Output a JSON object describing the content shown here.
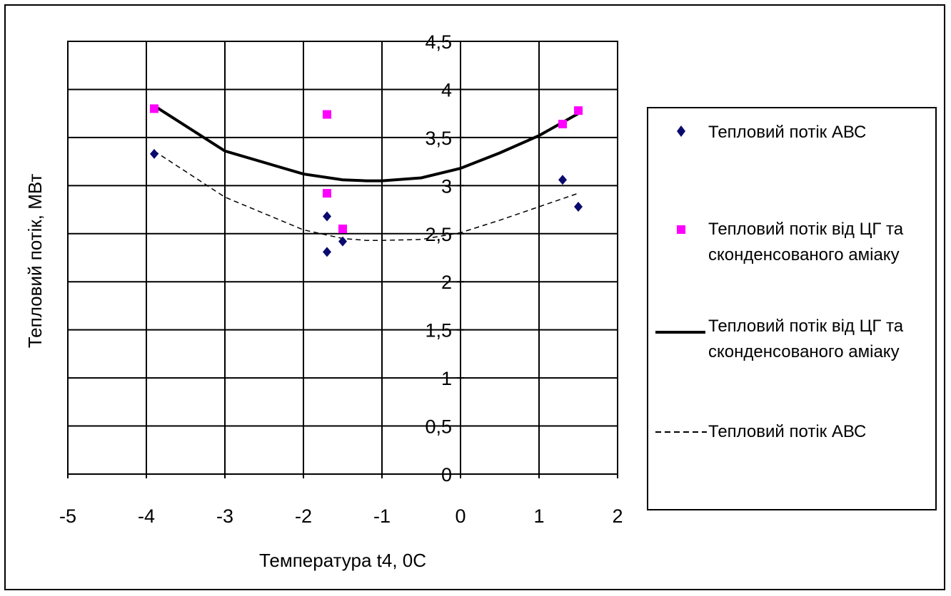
{
  "chart_data": {
    "type": "scatter",
    "xlabel": "Температура t4, 0С",
    "ylabel": "Тепловий потік, МВт",
    "xlim": [
      -5,
      2
    ],
    "ylim": [
      0,
      4.5
    ],
    "x_ticks": [
      "-5",
      "-4",
      "-3",
      "-2",
      "-1",
      "0",
      "1",
      "2"
    ],
    "y_ticks": [
      "0",
      "0,5",
      "1",
      "1,5",
      "2",
      "2,5",
      "3",
      "3,5",
      "4",
      "4,5"
    ],
    "grid": true,
    "legend_position": "right",
    "series": [
      {
        "name": "Тепловий потік АВС",
        "kind": "points",
        "marker": "diamond",
        "color": "#0a0a6e",
        "x": [
          -3.9,
          -1.7,
          -1.7,
          -1.5,
          1.3,
          1.5
        ],
        "y": [
          3.33,
          2.68,
          2.31,
          2.42,
          3.06,
          2.78
        ]
      },
      {
        "name": "Тепловий потік від ЦГ та сконденсованого аміаку",
        "kind": "points",
        "marker": "square",
        "color": "#ff00ff",
        "x": [
          -3.9,
          -1.7,
          -1.7,
          -1.5,
          1.3,
          1.5
        ],
        "y": [
          3.8,
          3.74,
          2.92,
          2.55,
          3.64,
          3.78
        ]
      },
      {
        "name": "Тепловий потік від ЦГ та сконденсованого аміаку",
        "kind": "trend",
        "line_style": "solid",
        "color": "#000000",
        "x": [
          -3.9,
          -3.0,
          -2.0,
          -1.5,
          -1.2,
          -1.0,
          -0.5,
          0.0,
          0.5,
          1.0,
          1.5
        ],
        "y": [
          3.83,
          3.36,
          3.12,
          3.06,
          3.05,
          3.05,
          3.08,
          3.18,
          3.34,
          3.52,
          3.75
        ]
      },
      {
        "name": "Тепловий потік АВС",
        "kind": "trend",
        "line_style": "dashed",
        "color": "#000000",
        "x": [
          -3.9,
          -3.0,
          -2.0,
          -1.5,
          -1.2,
          -1.0,
          -0.5,
          0.0,
          0.5,
          1.0,
          1.5
        ],
        "y": [
          3.36,
          2.88,
          2.54,
          2.45,
          2.43,
          2.43,
          2.44,
          2.51,
          2.64,
          2.78,
          2.92
        ]
      }
    ]
  }
}
